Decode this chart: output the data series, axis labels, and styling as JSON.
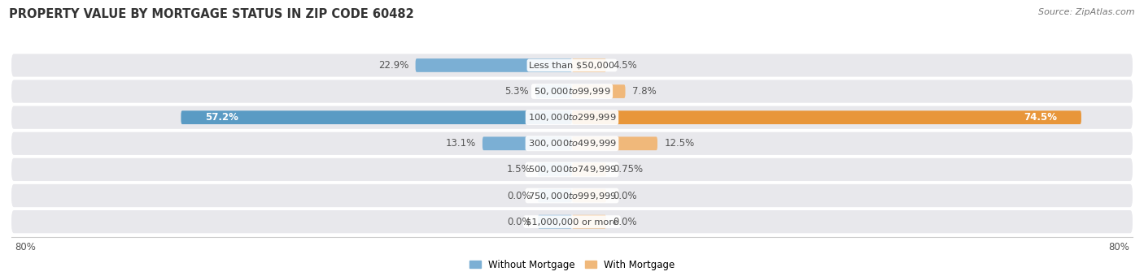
{
  "title": "PROPERTY VALUE BY MORTGAGE STATUS IN ZIP CODE 60482",
  "source": "Source: ZipAtlas.com",
  "categories": [
    "Less than $50,000",
    "$50,000 to $99,999",
    "$100,000 to $299,999",
    "$300,000 to $499,999",
    "$500,000 to $749,999",
    "$750,000 to $999,999",
    "$1,000,000 or more"
  ],
  "without_mortgage": [
    22.9,
    5.3,
    57.2,
    13.1,
    1.5,
    0.0,
    0.0
  ],
  "with_mortgage": [
    4.5,
    7.8,
    74.5,
    12.5,
    0.75,
    0.0,
    0.0
  ],
  "without_mortgage_color": "#7bafd4",
  "with_mortgage_color": "#f0b87a",
  "without_mortgage_color_strong": "#5a9bc4",
  "with_mortgage_color_strong": "#e8963a",
  "row_bg_color": "#e8e8ec",
  "axis_limit": 80.0,
  "bar_height": 0.52,
  "title_fontsize": 10.5,
  "label_fontsize": 8.5,
  "category_fontsize": 8.2,
  "tick_fontsize": 8.5,
  "source_fontsize": 8,
  "zero_bar_width": 5.0
}
